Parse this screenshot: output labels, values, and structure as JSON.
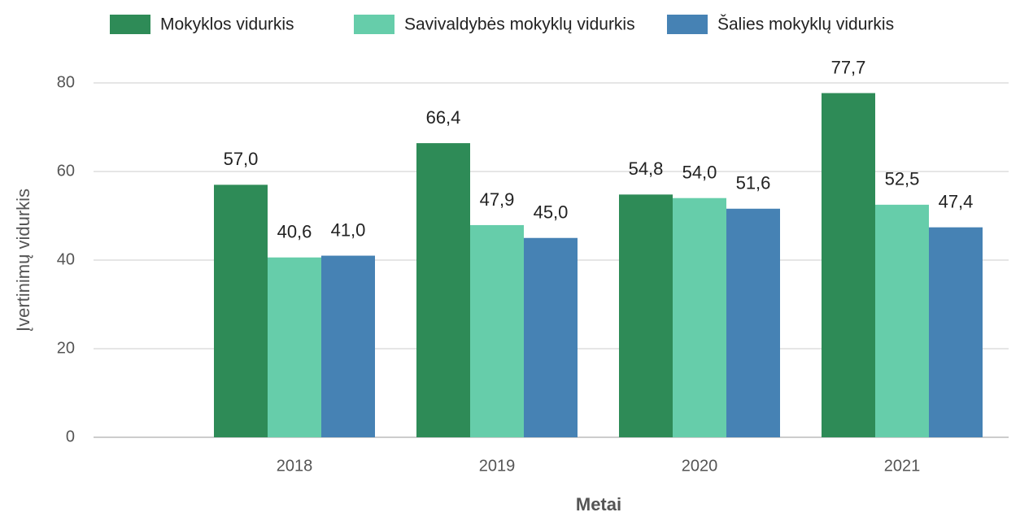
{
  "chart_data": {
    "type": "bar",
    "xlabel": "Metai",
    "ylabel": "Įvertinimų vidurkis",
    "categories": [
      null,
      "2018",
      "2019",
      "2020",
      "2021"
    ],
    "series": [
      {
        "name": "Mokyklos vidurkis",
        "color": "#2e8b57",
        "values": [
          null,
          57.0,
          66.4,
          54.8,
          77.7
        ],
        "value_labels": [
          null,
          "57,0",
          "66,4",
          "54,8",
          "77,7"
        ]
      },
      {
        "name": "Savivaldybės mokyklų vidurkis",
        "color": "#66cdaa",
        "values": [
          null,
          40.6,
          47.9,
          54.0,
          52.5
        ],
        "value_labels": [
          null,
          "40,6",
          "47,9",
          "54,0",
          "52,5"
        ]
      },
      {
        "name": "Šalies mokyklų vidurkis",
        "color": "#4682b4",
        "values": [
          null,
          41.0,
          45.0,
          51.6,
          47.4
        ],
        "value_labels": [
          null,
          "41,0",
          "45,0",
          "51,6",
          "47,4"
        ]
      }
    ],
    "ylim": [
      0,
      80
    ],
    "yticks": [
      0,
      20,
      40,
      60,
      80
    ],
    "grid": true,
    "legend": "top"
  }
}
